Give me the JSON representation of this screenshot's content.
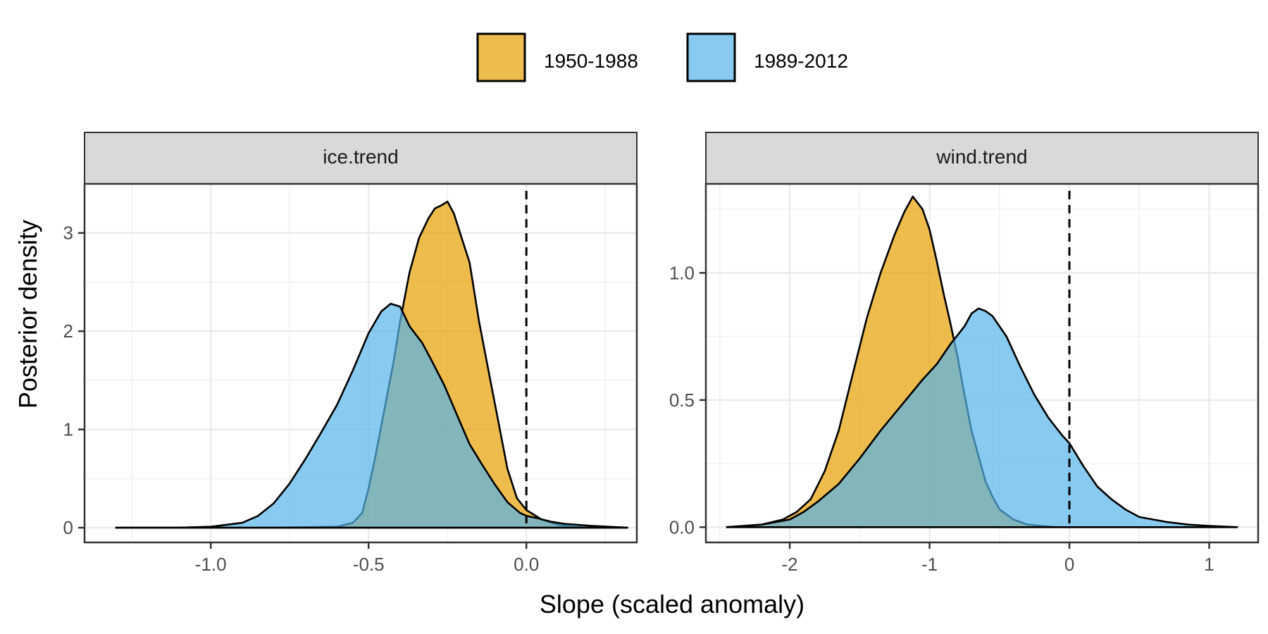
{
  "chart_data": {
    "type": "area",
    "chart_kind": "density",
    "xlabel": "Slope (scaled anomaly)",
    "ylabel": "Posterior density",
    "legend": {
      "position": "top",
      "entries": [
        {
          "label": "1950-1988",
          "color": "#E69F00"
        },
        {
          "label": "1989-2012",
          "color": "#56B4E9"
        }
      ]
    },
    "grid": true,
    "reference_line": {
      "x": 0,
      "style": "dashed"
    },
    "panels": [
      {
        "strip": "ice.trend",
        "xlim": [
          -1.4,
          0.35
        ],
        "ylim": [
          -0.15,
          3.5
        ],
        "xticks": [
          -1.0,
          -0.5,
          0.0
        ],
        "xtick_labels": [
          "-1.0",
          "-0.5",
          "0.0"
        ],
        "yticks": [
          0,
          1,
          2,
          3
        ],
        "ytick_labels": [
          "0",
          "1",
          "2",
          "3"
        ],
        "series": [
          {
            "name": "1950-1988",
            "color": "#E69F00",
            "points": [
              [
                -1.3,
                0
              ],
              [
                -0.8,
                0
              ],
              [
                -0.6,
                0.01
              ],
              [
                -0.55,
                0.05
              ],
              [
                -0.52,
                0.15
              ],
              [
                -0.5,
                0.4
              ],
              [
                -0.48,
                0.7
              ],
              [
                -0.45,
                1.2
              ],
              [
                -0.42,
                1.7
              ],
              [
                -0.4,
                2.1
              ],
              [
                -0.37,
                2.6
              ],
              [
                -0.34,
                2.95
              ],
              [
                -0.31,
                3.15
              ],
              [
                -0.29,
                3.25
              ],
              [
                -0.27,
                3.28
              ],
              [
                -0.25,
                3.32
              ],
              [
                -0.23,
                3.2
              ],
              [
                -0.21,
                3.0
              ],
              [
                -0.18,
                2.7
              ],
              [
                -0.15,
                2.1
              ],
              [
                -0.12,
                1.6
              ],
              [
                -0.09,
                1.1
              ],
              [
                -0.06,
                0.6
              ],
              [
                -0.03,
                0.3
              ],
              [
                0,
                0.18
              ],
              [
                0.05,
                0.08
              ],
              [
                0.1,
                0.03
              ],
              [
                0.15,
                0.01
              ],
              [
                0.2,
                0
              ],
              [
                0.32,
                0
              ]
            ]
          },
          {
            "name": "1989-2012",
            "color": "#56B4E9",
            "points": [
              [
                -1.3,
                0
              ],
              [
                -1.1,
                0
              ],
              [
                -1.0,
                0.01
              ],
              [
                -0.95,
                0.03
              ],
              [
                -0.9,
                0.05
              ],
              [
                -0.85,
                0.12
              ],
              [
                -0.8,
                0.25
              ],
              [
                -0.75,
                0.45
              ],
              [
                -0.7,
                0.7
              ],
              [
                -0.65,
                0.97
              ],
              [
                -0.6,
                1.25
              ],
              [
                -0.55,
                1.6
              ],
              [
                -0.5,
                1.98
              ],
              [
                -0.46,
                2.2
              ],
              [
                -0.43,
                2.28
              ],
              [
                -0.4,
                2.25
              ],
              [
                -0.37,
                2.05
              ],
              [
                -0.33,
                1.88
              ],
              [
                -0.3,
                1.7
              ],
              [
                -0.26,
                1.45
              ],
              [
                -0.22,
                1.15
              ],
              [
                -0.18,
                0.85
              ],
              [
                -0.14,
                0.64
              ],
              [
                -0.1,
                0.44
              ],
              [
                -0.06,
                0.26
              ],
              [
                -0.02,
                0.15
              ],
              [
                0,
                0.12
              ],
              [
                0.03,
                0.1
              ],
              [
                0.08,
                0.06
              ],
              [
                0.12,
                0.04
              ],
              [
                0.2,
                0.02
              ],
              [
                0.32,
                0
              ]
            ]
          }
        ]
      },
      {
        "strip": "wind.trend",
        "xlim": [
          -2.6,
          1.35
        ],
        "ylim": [
          -0.06,
          1.35
        ],
        "xticks": [
          -2,
          -1,
          0,
          1
        ],
        "xtick_labels": [
          "-2",
          "-1",
          "0",
          "1"
        ],
        "yticks": [
          0.0,
          0.5,
          1.0
        ],
        "ytick_labels": [
          "0.0",
          "0.5",
          "1.0"
        ],
        "series": [
          {
            "name": "1950-1988",
            "color": "#E69F00",
            "points": [
              [
                -2.45,
                0
              ],
              [
                -2.2,
                0.01
              ],
              [
                -2.05,
                0.03
              ],
              [
                -1.95,
                0.06
              ],
              [
                -1.85,
                0.11
              ],
              [
                -1.75,
                0.22
              ],
              [
                -1.65,
                0.38
              ],
              [
                -1.55,
                0.6
              ],
              [
                -1.45,
                0.82
              ],
              [
                -1.35,
                1.0
              ],
              [
                -1.25,
                1.15
              ],
              [
                -1.18,
                1.24
              ],
              [
                -1.12,
                1.3
              ],
              [
                -1.05,
                1.25
              ],
              [
                -1.0,
                1.17
              ],
              [
                -0.95,
                1.05
              ],
              [
                -0.9,
                0.92
              ],
              [
                -0.85,
                0.8
              ],
              [
                -0.8,
                0.67
              ],
              [
                -0.75,
                0.52
              ],
              [
                -0.7,
                0.38
              ],
              [
                -0.65,
                0.28
              ],
              [
                -0.6,
                0.18
              ],
              [
                -0.55,
                0.12
              ],
              [
                -0.5,
                0.07
              ],
              [
                -0.4,
                0.03
              ],
              [
                -0.3,
                0.01
              ],
              [
                -0.1,
                0
              ],
              [
                1.2,
                0
              ]
            ]
          },
          {
            "name": "1989-2012",
            "color": "#56B4E9",
            "points": [
              [
                -2.45,
                0
              ],
              [
                -2.2,
                0.01
              ],
              [
                -2.0,
                0.03
              ],
              [
                -1.9,
                0.06
              ],
              [
                -1.8,
                0.1
              ],
              [
                -1.65,
                0.17
              ],
              [
                -1.5,
                0.27
              ],
              [
                -1.35,
                0.38
              ],
              [
                -1.2,
                0.48
              ],
              [
                -1.05,
                0.58
              ],
              [
                -0.95,
                0.64
              ],
              [
                -0.85,
                0.72
              ],
              [
                -0.75,
                0.79
              ],
              [
                -0.7,
                0.84
              ],
              [
                -0.65,
                0.86
              ],
              [
                -0.6,
                0.85
              ],
              [
                -0.55,
                0.83
              ],
              [
                -0.45,
                0.75
              ],
              [
                -0.35,
                0.63
              ],
              [
                -0.25,
                0.52
              ],
              [
                -0.15,
                0.43
              ],
              [
                -0.05,
                0.36
              ],
              [
                0,
                0.33
              ],
              [
                0.1,
                0.24
              ],
              [
                0.2,
                0.16
              ],
              [
                0.3,
                0.11
              ],
              [
                0.4,
                0.07
              ],
              [
                0.5,
                0.04
              ],
              [
                0.6,
                0.03
              ],
              [
                0.7,
                0.02
              ],
              [
                0.85,
                0.01
              ],
              [
                1.0,
                0.005
              ],
              [
                1.2,
                0
              ]
            ]
          }
        ]
      }
    ]
  }
}
